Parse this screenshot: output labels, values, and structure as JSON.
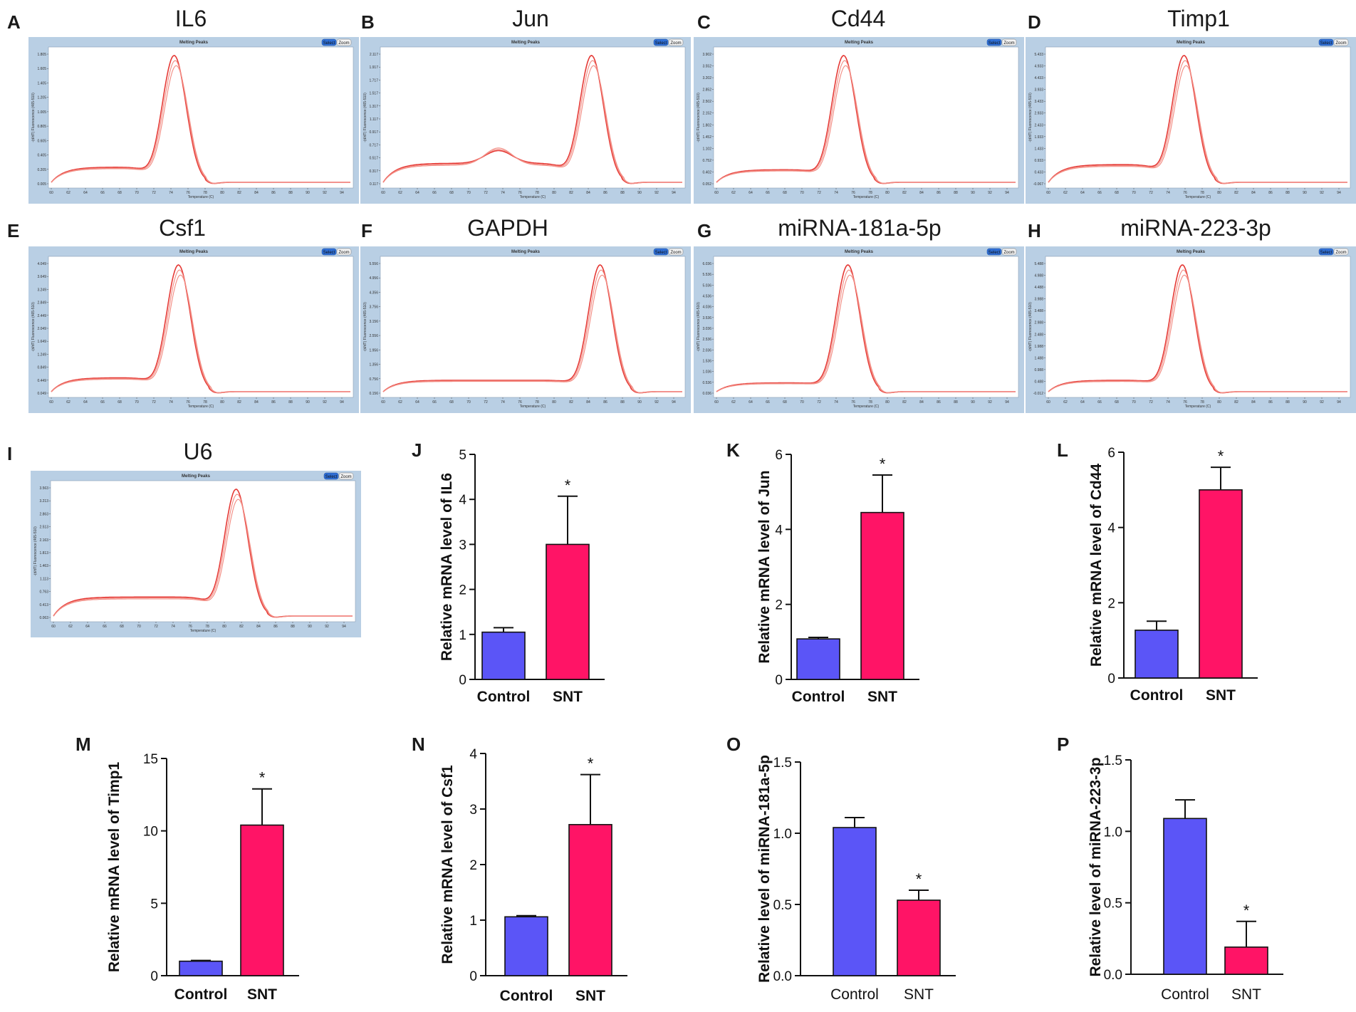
{
  "colors": {
    "control_bar": "#5b55f7",
    "snt_bar": "#ff1466",
    "melt_line": "#e53935",
    "melt_line_light": "#f28b82",
    "window_frame": "#b9cfe4",
    "window_bg": "#ffffff"
  },
  "melt_window": {
    "title": "Melting Peaks",
    "select_label": "Select",
    "zoom_label": "Zoom",
    "x_axis_label": "Temperature (C)",
    "y_axis_label": "-(d/dT) Fluorescence (465-510)",
    "x_ticks": [
      "60",
      "62",
      "64",
      "66",
      "68",
      "70",
      "72",
      "74",
      "76",
      "78",
      "80",
      "82",
      "84",
      "86",
      "88",
      "90",
      "92",
      "94"
    ]
  },
  "chart_data": [
    {
      "type": "line",
      "panel": "A",
      "title": "IL6",
      "xlabel": "Temperature (C)",
      "xlim": [
        60,
        95
      ],
      "peak_temperature": 74.5,
      "baseline_shoulder": 0.12,
      "curves": 3,
      "y_ticks": [
        "0.005",
        "0.205",
        "0.405",
        "0.605",
        "0.805",
        "1.005",
        "1.205",
        "1.405",
        "1.605",
        "1.805"
      ]
    },
    {
      "type": "line",
      "panel": "B",
      "title": "Jun",
      "xlabel": "Temperature (C)",
      "xlim": [
        60,
        95
      ],
      "peak_temperature": 84.5,
      "secondary_peak": 73.5,
      "baseline_shoulder": 0.15,
      "curves": 3,
      "y_ticks": [
        "0.117",
        "0.317",
        "0.517",
        "0.717",
        "0.917",
        "1.117",
        "1.317",
        "1.517",
        "1.717",
        "1.917",
        "2.117"
      ]
    },
    {
      "type": "line",
      "panel": "C",
      "title": "Cd44",
      "xlabel": "Temperature (C)",
      "xlim": [
        60,
        95
      ],
      "peak_temperature": 75,
      "baseline_shoulder": 0.1,
      "curves": 3,
      "y_ticks": [
        "0.052",
        "0.402",
        "0.752",
        "1.102",
        "1.452",
        "1.802",
        "2.152",
        "2.502",
        "2.852",
        "3.202",
        "3.552",
        "3.902"
      ]
    },
    {
      "type": "line",
      "panel": "D",
      "title": "Timp1",
      "xlabel": "Temperature (C)",
      "xlim": [
        60,
        95
      ],
      "peak_temperature": 76,
      "baseline_shoulder": 0.14,
      "curves": 3,
      "y_ticks": [
        "-0.067",
        "0.433",
        "0.933",
        "1.433",
        "1.933",
        "2.433",
        "2.933",
        "3.433",
        "3.933",
        "4.433",
        "4.933",
        "5.433"
      ]
    },
    {
      "type": "line",
      "panel": "E",
      "title": "Csf1",
      "xlabel": "Temperature (C)",
      "xlim": [
        60,
        95
      ],
      "peak_temperature": 75,
      "baseline_shoulder": 0.11,
      "curves": 3,
      "y_ticks": [
        "0.049",
        "0.449",
        "0.849",
        "1.249",
        "1.649",
        "2.049",
        "2.449",
        "2.849",
        "3.249",
        "3.649",
        "4.049"
      ]
    },
    {
      "type": "line",
      "panel": "F",
      "title": "GAPDH",
      "xlabel": "Temperature (C)",
      "xlim": [
        60,
        95
      ],
      "peak_temperature": 85.5,
      "baseline_shoulder": 0.09,
      "curves": 3,
      "y_ticks": [
        "0.156",
        "0.756",
        "1.356",
        "1.956",
        "2.556",
        "3.156",
        "3.756",
        "4.356",
        "4.956",
        "5.556"
      ]
    },
    {
      "type": "line",
      "panel": "G",
      "title": "miRNA-181a-5p",
      "xlabel": "Temperature (C)",
      "xlim": [
        60,
        95
      ],
      "peak_temperature": 75.5,
      "baseline_shoulder": 0.07,
      "curves": 3,
      "y_ticks": [
        "0.036",
        "0.536",
        "1.036",
        "1.536",
        "2.036",
        "2.536",
        "3.036",
        "3.536",
        "4.036",
        "4.536",
        "5.036",
        "5.536",
        "6.036"
      ]
    },
    {
      "type": "line",
      "panel": "H",
      "title": "miRNA-223-3p",
      "xlabel": "Temperature (C)",
      "xlim": [
        60,
        95
      ],
      "peak_temperature": 75.8,
      "baseline_shoulder": 0.09,
      "curves": 3,
      "y_ticks": [
        "-0.012",
        "0.488",
        "0.988",
        "1.488",
        "1.988",
        "2.488",
        "2.988",
        "3.488",
        "3.988",
        "4.488",
        "4.988",
        "5.488"
      ]
    },
    {
      "type": "line",
      "panel": "I",
      "title": "U6",
      "xlabel": "Temperature (C)",
      "xlim": [
        60,
        95
      ],
      "peak_temperature": 81.5,
      "baseline_shoulder": 0.15,
      "curves": 3,
      "y_ticks": [
        "0.063",
        "0.413",
        "0.763",
        "1.113",
        "1.463",
        "1.813",
        "2.163",
        "2.513",
        "2.863",
        "3.213",
        "3.563"
      ]
    },
    {
      "type": "bar",
      "panel": "J",
      "categories": [
        "Control",
        "SNT"
      ],
      "values": [
        1.05,
        3.0
      ],
      "errors": [
        0.1,
        1.07
      ],
      "significance": [
        "",
        "*"
      ],
      "ylabel": "Relative mRNA level of IL6",
      "ylim": [
        0,
        5
      ],
      "yticks": [
        "0",
        "1",
        "2",
        "3",
        "4",
        "5"
      ],
      "bold_categories": true
    },
    {
      "type": "bar",
      "panel": "K",
      "categories": [
        "Control",
        "SNT"
      ],
      "values": [
        1.08,
        4.45
      ],
      "errors": [
        0.04,
        1.0
      ],
      "significance": [
        "",
        "*"
      ],
      "ylabel": "Relative mRNA level of Jun",
      "ylim": [
        0,
        6
      ],
      "yticks": [
        "0",
        "2",
        "4",
        "6"
      ],
      "bold_categories": true
    },
    {
      "type": "bar",
      "panel": "L",
      "categories": [
        "Control",
        "SNT"
      ],
      "values": [
        1.27,
        5.0
      ],
      "errors": [
        0.24,
        0.6
      ],
      "significance": [
        "",
        "*"
      ],
      "ylabel": "Relative mRNA level of Cd44",
      "ylim": [
        0,
        6
      ],
      "yticks": [
        "0",
        "2",
        "4",
        "6"
      ],
      "bold_categories": true
    },
    {
      "type": "bar",
      "panel": "M",
      "categories": [
        "Control",
        "SNT"
      ],
      "values": [
        1.0,
        10.4
      ],
      "errors": [
        0.05,
        2.5
      ],
      "significance": [
        "",
        "*"
      ],
      "ylabel": "Relative mRNA level of Timp1",
      "ylim": [
        0,
        15
      ],
      "yticks": [
        "0",
        "5",
        "10",
        "15"
      ],
      "bold_categories": true
    },
    {
      "type": "bar",
      "panel": "N",
      "categories": [
        "Control",
        "SNT"
      ],
      "values": [
        1.06,
        2.72
      ],
      "errors": [
        0.02,
        0.9
      ],
      "significance": [
        "",
        "*"
      ],
      "ylabel": "Relative mRNA level of Csf1",
      "ylim": [
        0,
        4
      ],
      "yticks": [
        "0",
        "1",
        "2",
        "3",
        "4"
      ],
      "bold_categories": true
    },
    {
      "type": "bar",
      "panel": "O",
      "categories": [
        "Control",
        "SNT"
      ],
      "values": [
        1.04,
        0.53
      ],
      "errors": [
        0.07,
        0.07
      ],
      "significance": [
        "",
        "*"
      ],
      "ylabel": "Relative level of miRNA-181a-5p",
      "ylim": [
        0,
        1.5
      ],
      "yticks": [
        "0.0",
        "0.5",
        "1.0",
        "1.5"
      ],
      "bold_categories": false
    },
    {
      "type": "bar",
      "panel": "P",
      "categories": [
        "Control",
        "SNT"
      ],
      "values": [
        1.09,
        0.19
      ],
      "errors": [
        0.13,
        0.18
      ],
      "significance": [
        "",
        "*"
      ],
      "ylabel": "Relative level of miRNA-223-3p",
      "ylim": [
        0,
        1.5
      ],
      "yticks": [
        "0.0",
        "0.5",
        "1.0",
        "1.5"
      ],
      "bold_categories": false
    }
  ]
}
